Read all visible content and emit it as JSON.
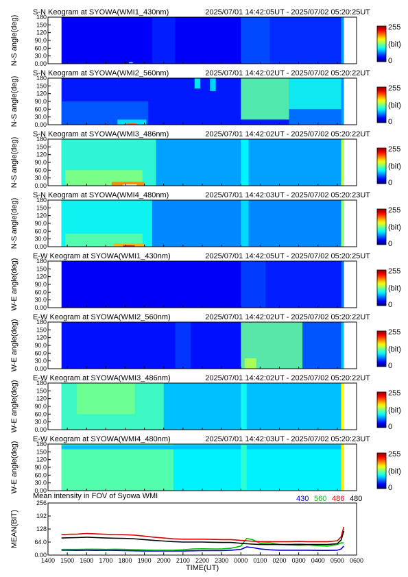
{
  "chart_data": [
    {
      "type": "heatmap",
      "title": "S-N Keogram at SYOWA(WMI1_430nm)",
      "time_range": "2025/07/01 14:42:05UT - 2025/07/02 05:20:25UT",
      "ylabel": "N-S angle(deg)",
      "yticks": [
        "180",
        "150",
        "120",
        "90.0",
        "60.0",
        "30.0",
        "0.00"
      ],
      "colorbar": {
        "max_label": "255",
        "unit_label": "(bit)",
        "min_label": "0"
      },
      "scale_max": 255,
      "base_level": 30,
      "x_range_hours": [
        14.7,
        29.34
      ],
      "features": [
        {
          "h0": 19.4,
          "h1": 20.6,
          "y0": 0,
          "y1": 180,
          "level": 40
        },
        {
          "h0": 24.0,
          "h1": 25.5,
          "y0": 0,
          "y1": 180,
          "level": 52
        },
        {
          "h0": 25.5,
          "h1": 29.2,
          "y0": 0,
          "y1": 180,
          "level": 44
        },
        {
          "h0": 18.2,
          "h1": 18.4,
          "y0": 2,
          "y1": 6,
          "level": 120
        }
      ],
      "edge_level": 70
    },
    {
      "type": "heatmap",
      "title": "S-N Keogram at SYOWA(WMI2_560nm)",
      "time_range": "2025/07/01 14:42:02UT - 2025/07/02 05:20:22UT",
      "ylabel": "N-S angle(deg)",
      "yticks": [
        "180",
        "150",
        "120",
        "90.0",
        "60.0",
        "30.0",
        "0.00"
      ],
      "colorbar": {
        "max_label": "255",
        "unit_label": "(bit)",
        "min_label": "0"
      },
      "scale_max": 255,
      "base_level": 38,
      "x_range_hours": [
        14.7,
        29.34
      ],
      "features": [
        {
          "h0": 14.7,
          "h1": 19.2,
          "y0": 0,
          "y1": 90,
          "level": 55
        },
        {
          "h0": 17.6,
          "h1": 19.1,
          "y0": 0,
          "y1": 20,
          "level": 90
        },
        {
          "h0": 18.1,
          "h1": 18.6,
          "y0": 0,
          "y1": 6,
          "level": 200
        },
        {
          "h0": 21.6,
          "h1": 21.9,
          "y0": 140,
          "y1": 180,
          "level": 95
        },
        {
          "h0": 22.4,
          "h1": 22.7,
          "y0": 130,
          "y1": 180,
          "level": 90
        },
        {
          "h0": 24.0,
          "h1": 26.5,
          "y0": 20,
          "y1": 180,
          "level": 118
        },
        {
          "h0": 26.5,
          "h1": 29.2,
          "y0": 60,
          "y1": 180,
          "level": 100
        },
        {
          "h0": 26.5,
          "h1": 29.2,
          "y0": 0,
          "y1": 60,
          "level": 62
        }
      ],
      "edge_level": 70
    },
    {
      "type": "heatmap",
      "title": "S-N Keogram at SYOWA(WMI3_486nm)",
      "time_range": "2025/07/01 14:42:02UT - 2025/07/02 05:20:22UT",
      "ylabel": "N-S angle(deg)",
      "yticks": [
        "180",
        "150",
        "120",
        "90.0",
        "60.0",
        "30.0",
        "0.00"
      ],
      "colorbar": {
        "max_label": "255",
        "unit_label": "(bit)",
        "min_label": "0"
      },
      "scale_max": 255,
      "base_level": 72,
      "x_range_hours": [
        14.7,
        29.34
      ],
      "features": [
        {
          "h0": 14.7,
          "h1": 19.6,
          "y0": 0,
          "y1": 180,
          "level": 108
        },
        {
          "h0": 14.9,
          "h1": 18.9,
          "y0": 0,
          "y1": 60,
          "level": 128
        },
        {
          "h0": 17.3,
          "h1": 19.0,
          "y0": 0,
          "y1": 15,
          "level": 190
        },
        {
          "h0": 17.9,
          "h1": 18.6,
          "y0": 0,
          "y1": 5,
          "level": 255
        },
        {
          "h0": 24.0,
          "h1": 24.4,
          "y0": 0,
          "y1": 180,
          "level": 95
        }
      ],
      "edge_level": 140
    },
    {
      "type": "heatmap",
      "title": "S-N Keogram at SYOWA(WMI4_480nm)",
      "time_range": "2025/07/01 14:42:03UT - 2025/07/02 05:20:23UT",
      "ylabel": "N-S angle(deg)",
      "yticks": [
        "180",
        "150",
        "120",
        "90.0",
        "60.0",
        "30.0",
        "0.00"
      ],
      "colorbar": {
        "max_label": "255",
        "unit_label": "(bit)",
        "min_label": "0"
      },
      "scale_max": 255,
      "base_level": 66,
      "x_range_hours": [
        14.7,
        29.34
      ],
      "features": [
        {
          "h0": 14.7,
          "h1": 19.4,
          "y0": 0,
          "y1": 180,
          "level": 100
        },
        {
          "h0": 14.9,
          "h1": 18.9,
          "y0": 0,
          "y1": 50,
          "level": 118
        },
        {
          "h0": 17.4,
          "h1": 19.0,
          "y0": 0,
          "y1": 12,
          "level": 180
        },
        {
          "h0": 17.9,
          "h1": 18.5,
          "y0": 0,
          "y1": 5,
          "level": 230
        },
        {
          "h0": 24.0,
          "h1": 24.4,
          "y0": 0,
          "y1": 180,
          "level": 88
        }
      ],
      "edge_level": 130
    },
    {
      "type": "heatmap",
      "title": "E-W Keogram at SYOWA(WMI1_430nm)",
      "time_range": "2025/07/01 14:42:05UT - 2025/07/02 05:20:25UT",
      "ylabel": "W-E angle(deg)",
      "yticks": [
        "180",
        "150",
        "120",
        "90.0",
        "60.0",
        "30.0",
        "0.00"
      ],
      "colorbar": {
        "max_label": "255",
        "unit_label": "(bit)",
        "min_label": "0"
      },
      "scale_max": 255,
      "base_level": 30,
      "x_range_hours": [
        14.7,
        29.34
      ],
      "features": [
        {
          "h0": 24.0,
          "h1": 25.3,
          "y0": 0,
          "y1": 180,
          "level": 48
        },
        {
          "h0": 25.3,
          "h1": 29.2,
          "y0": 0,
          "y1": 180,
          "level": 40
        }
      ],
      "edge_level": 60
    },
    {
      "type": "heatmap",
      "title": "E-W Keogram at SYOWA(WMI2_560nm)",
      "time_range": "2025/07/01 14:42:02UT - 2025/07/02 05:20:22UT",
      "ylabel": "W-E angle(deg)",
      "yticks": [
        "180",
        "150",
        "120",
        "90.0",
        "60.0",
        "30.0",
        "0.00"
      ],
      "colorbar": {
        "max_label": "255",
        "unit_label": "(bit)",
        "min_label": "0"
      },
      "scale_max": 255,
      "base_level": 36,
      "x_range_hours": [
        14.7,
        29.34
      ],
      "features": [
        {
          "h0": 20.6,
          "h1": 21.4,
          "y0": 0,
          "y1": 180,
          "level": 46
        },
        {
          "h0": 24.0,
          "h1": 27.2,
          "y0": 0,
          "y1": 180,
          "level": 120
        },
        {
          "h0": 24.2,
          "h1": 24.8,
          "y0": 0,
          "y1": 40,
          "level": 140
        },
        {
          "h0": 27.2,
          "h1": 29.2,
          "y0": 0,
          "y1": 180,
          "level": 55
        }
      ],
      "edge_level": 80
    },
    {
      "type": "heatmap",
      "title": "E-W Keogram at SYOWA(WMI3_486nm)",
      "time_range": "2025/07/01 14:42:02UT - 2025/07/02 05:20:22UT",
      "ylabel": "W-E angle(deg)",
      "yticks": [
        "180",
        "150",
        "120",
        "90.0",
        "60.0",
        "30.0",
        "0.00"
      ],
      "colorbar": {
        "max_label": "255",
        "unit_label": "(bit)",
        "min_label": "0"
      },
      "scale_max": 255,
      "base_level": 80,
      "x_range_hours": [
        14.7,
        29.34
      ],
      "features": [
        {
          "h0": 14.7,
          "h1": 20.0,
          "y0": 0,
          "y1": 180,
          "level": 112
        },
        {
          "h0": 15.5,
          "h1": 18.5,
          "y0": 60,
          "y1": 180,
          "level": 124
        },
        {
          "h0": 24.0,
          "h1": 24.3,
          "y0": 0,
          "y1": 180,
          "level": 100
        }
      ],
      "edge_level": 160
    },
    {
      "type": "heatmap",
      "title": "E-W Keogram at SYOWA(WMI4_480nm)",
      "time_range": "2025/07/01 14:42:03UT - 2025/07/02 05:20:23UT",
      "ylabel": "W-E angle(deg)",
      "yticks": [
        "180",
        "150",
        "120",
        "90.0",
        "60.0",
        "30.0",
        "0.00"
      ],
      "colorbar": {
        "max_label": "255",
        "unit_label": "(bit)",
        "min_label": "0"
      },
      "scale_max": 255,
      "base_level": 92,
      "x_range_hours": [
        14.7,
        29.34
      ],
      "features": [
        {
          "h0": 14.7,
          "h1": 20.5,
          "y0": 0,
          "y1": 180,
          "level": 118
        },
        {
          "h0": 14.7,
          "h1": 29.2,
          "y0": 160,
          "y1": 175,
          "level": 78
        },
        {
          "h0": 24.0,
          "h1": 24.3,
          "y0": 0,
          "y1": 180,
          "level": 108
        }
      ],
      "edge_level": 165
    },
    {
      "type": "line",
      "title": "Mean intensity in FOV of Syowa WMI",
      "xlabel": "TIME(UT)",
      "ylabel": "MEAN(BIT)",
      "ylim": [
        0,
        256
      ],
      "yticks": [
        "256",
        "192",
        "128",
        "64.0",
        "0.00"
      ],
      "xlim": [
        14,
        30
      ],
      "xticks": [
        "1400",
        "1500",
        "1600",
        "1700",
        "1800",
        "1900",
        "2000",
        "2100",
        "2200",
        "2300",
        "0000",
        "0100",
        "0200",
        "0300",
        "0400",
        "0500",
        "0600"
      ],
      "legend_placement": "top-right, above plot",
      "x": [
        14.7,
        15.0,
        15.5,
        16.0,
        16.5,
        17.0,
        17.5,
        18.0,
        18.5,
        19.0,
        19.5,
        20.0,
        20.5,
        21.0,
        21.5,
        22.0,
        22.5,
        23.0,
        23.5,
        24.0,
        24.3,
        24.6,
        25.0,
        25.5,
        26.0,
        26.5,
        27.0,
        27.5,
        28.0,
        28.5,
        29.0,
        29.2,
        29.34
      ],
      "series": [
        {
          "name": "430",
          "color": "#0000cc",
          "values": [
            24,
            24,
            23,
            24,
            23,
            24,
            23,
            22,
            21,
            20,
            20,
            20,
            20,
            20,
            21,
            22,
            22,
            22,
            24,
            28,
            40,
            37,
            30,
            26,
            24,
            24,
            24,
            24,
            23,
            23,
            24,
            30,
            44
          ]
        },
        {
          "name": "560",
          "color": "#00bb00",
          "values": [
            28,
            28,
            28,
            29,
            29,
            28,
            29,
            28,
            27,
            25,
            24,
            24,
            24,
            26,
            30,
            31,
            30,
            30,
            34,
            44,
            82,
            76,
            58,
            60,
            52,
            50,
            48,
            50,
            46,
            44,
            52,
            60,
            60
          ]
        },
        {
          "name": "486",
          "color": "#dd0000",
          "values": [
            100,
            102,
            103,
            106,
            104,
            102,
            101,
            100,
            98,
            93,
            88,
            84,
            80,
            78,
            78,
            78,
            77,
            76,
            76,
            72,
            70,
            68,
            66,
            66,
            66,
            66,
            67,
            66,
            66,
            66,
            70,
            90,
            138
          ]
        },
        {
          "name": "480",
          "color": "#000000",
          "values": [
            84,
            85,
            86,
            88,
            86,
            84,
            83,
            82,
            80,
            76,
            72,
            69,
            66,
            64,
            64,
            64,
            63,
            62,
            62,
            58,
            56,
            54,
            52,
            52,
            52,
            52,
            53,
            52,
            52,
            52,
            56,
            74,
            118
          ]
        }
      ]
    }
  ]
}
